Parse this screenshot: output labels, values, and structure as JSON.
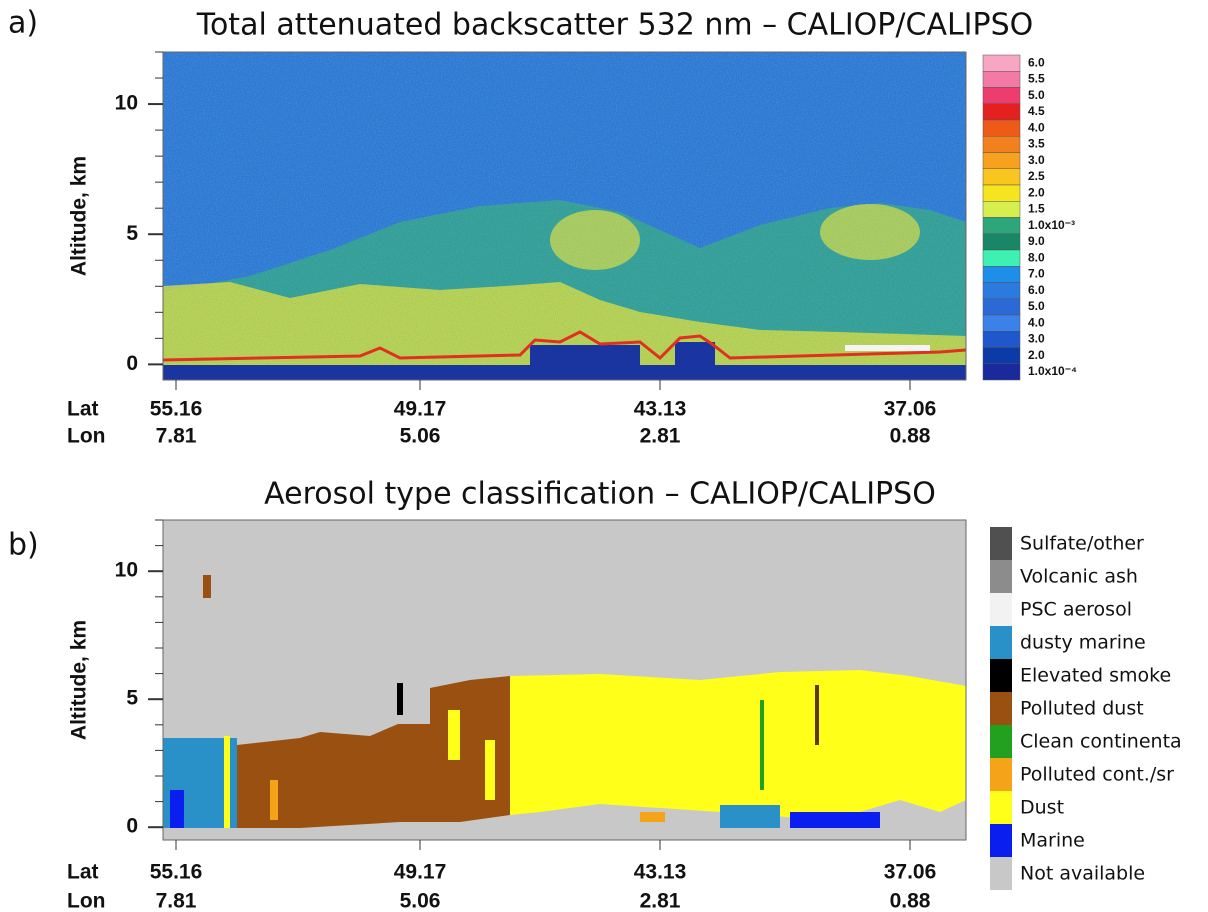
{
  "chart_data": [
    {
      "type": "heatmap",
      "panel_label": "a)",
      "title": "Total attenuated backscatter 532 nm – CALIOP/CALIPSO",
      "ylabel": "Altitude, km",
      "ylim": [
        -0.6,
        12
      ],
      "yticks": [
        0,
        5,
        10
      ],
      "x_rows": [
        {
          "name": "Lat",
          "labels": [
            "55.16",
            "49.17",
            "43.13",
            "37.06"
          ]
        },
        {
          "name": "Lon",
          "labels": [
            "7.81",
            "5.06",
            "2.81",
            "0.88"
          ]
        }
      ],
      "colorbar": {
        "labels": [
          "6.0",
          "5.5",
          "5.0",
          "4.5",
          "4.0",
          "3.5",
          "3.0",
          "2.5",
          "2.0",
          "1.5",
          "1.0x10⁻³",
          "9.0",
          "8.0",
          "7.0",
          "6.0",
          "5.0",
          "4.0",
          "3.0",
          "2.0",
          "1.0x10⁻⁴"
        ],
        "colors": [
          "#f7a6c4",
          "#f47aa6",
          "#ee3c6e",
          "#e52020",
          "#ee5a18",
          "#f2801c",
          "#f6a21e",
          "#f9c620",
          "#f6e41e",
          "#d6ee4e",
          "#2ea67c",
          "#1a8668",
          "#3ef0b2",
          "#1f8ee8",
          "#2a7ae0",
          "#2b69d6",
          "#3a82ea",
          "#1e58cc",
          "#0c3aa6",
          "#1a2a9c"
        ]
      }
    },
    {
      "type": "heatmap",
      "panel_label": "b)",
      "title": "Aerosol type classification – CALIOP/CALIPSO",
      "ylabel": "Altitude, km",
      "ylim": [
        -0.5,
        12
      ],
      "yticks": [
        0,
        5,
        10
      ],
      "x_rows": [
        {
          "name": "Lat",
          "labels": [
            "55.16",
            "49.17",
            "43.13",
            "37.06"
          ]
        },
        {
          "name": "Lon",
          "labels": [
            "7.81",
            "5.06",
            "2.81",
            "0.88"
          ]
        }
      ],
      "legend": {
        "names": [
          "Sulfate/other",
          "Volcanic ash",
          "PSC aerosol",
          "dusty marine",
          "Elevated smoke",
          "Polluted dust",
          "Clean continenta",
          "Polluted cont./sr",
          "Dust",
          "Marine",
          "Not available"
        ],
        "colors": [
          "#505050",
          "#8c8c8c",
          "#f2f2f2",
          "#2a90c8",
          "#000000",
          "#9a5010",
          "#22a020",
          "#f5a41a",
          "#ffff1a",
          "#0a1ef0",
          "#c8c8c8"
        ]
      }
    }
  ]
}
